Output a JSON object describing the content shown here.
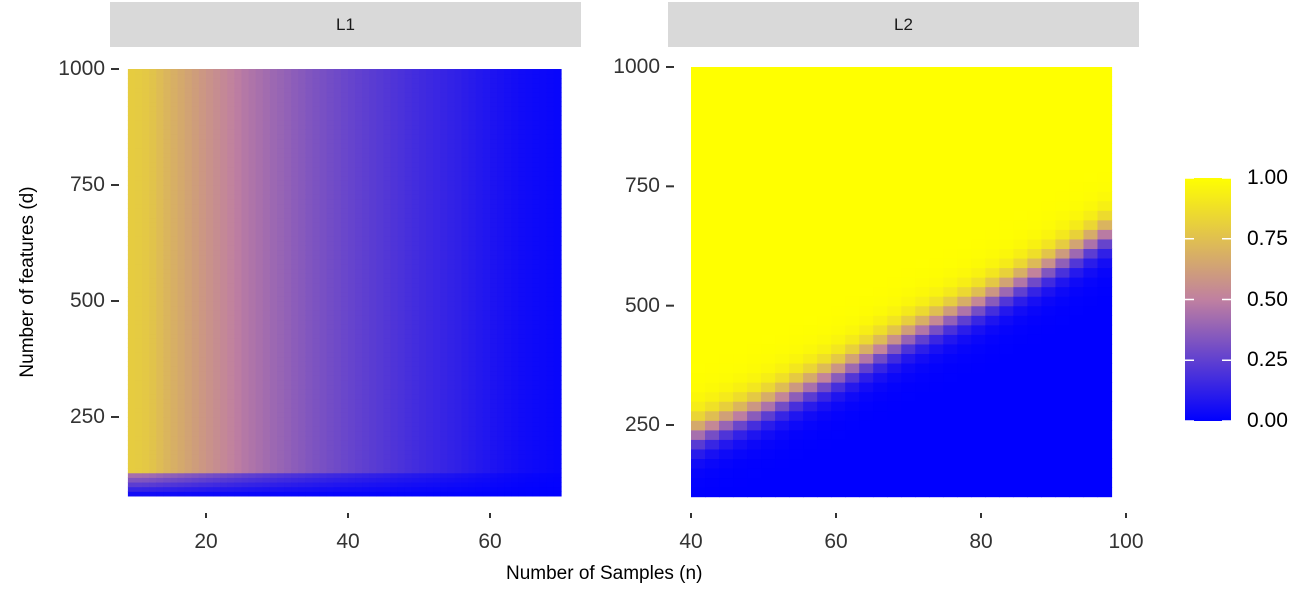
{
  "chart_data": {
    "type": "heatmap",
    "xlabel": "Number of Samples (n)",
    "ylabel": "Number of features (d)",
    "legend": {
      "placement": "right",
      "ticks": [
        "0.00",
        "0.25",
        "0.50",
        "0.75",
        "1.00"
      ],
      "colors": {
        "low": "#0000ff",
        "mid": "#c080a0",
        "high": "#ffff00"
      }
    },
    "panels": [
      {
        "title": "L1",
        "xlim": [
          9,
          70
        ],
        "ylim": [
          80,
          1000
        ],
        "xticks": [
          20,
          40,
          60
        ],
        "xtick_labels": [
          "20",
          "40",
          "60"
        ],
        "yticks": [
          250,
          500,
          750,
          1000
        ],
        "ytick_labels": [
          "250",
          "500",
          "750",
          "1000"
        ],
        "profile_n": [
          10,
          12,
          14,
          17,
          20,
          23,
          26,
          30,
          35,
          40,
          45,
          50,
          55,
          60,
          65,
          70
        ],
        "profile_value_high_d": [
          0.8,
          0.78,
          0.72,
          0.65,
          0.58,
          0.52,
          0.46,
          0.4,
          0.33,
          0.27,
          0.22,
          0.17,
          0.13,
          0.08,
          0.04,
          0.02
        ],
        "low_d_cutoff": 130
      },
      {
        "title": "L2",
        "xlim": [
          40,
          98
        ],
        "ylim": [
          100,
          1000
        ],
        "xticks": [
          40,
          60,
          80,
          100
        ],
        "xtick_labels": [
          "40",
          "60",
          "80",
          "100"
        ],
        "yticks": [
          250,
          500,
          750,
          1000
        ],
        "ytick_labels": [
          "250",
          "500",
          "750",
          "1000"
        ],
        "transition_n": [
          40,
          50,
          60,
          70,
          80,
          90,
          98
        ],
        "transition_d": [
          230,
          290,
          360,
          440,
          510,
          590,
          660
        ],
        "transition_width": 85
      }
    ]
  }
}
